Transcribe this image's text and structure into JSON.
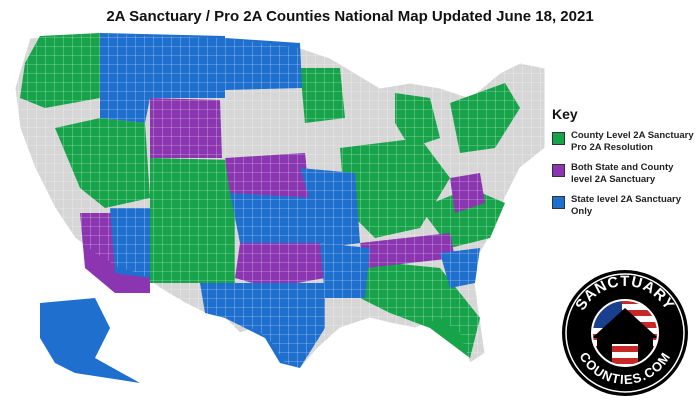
{
  "title": "2A Sanctuary / Pro 2A Counties National Map Updated June 18, 2021",
  "colors": {
    "county": "#16a34a",
    "both": "#8b35b0",
    "state": "#1f6fcf",
    "none": "#d6d6d6",
    "border": "#ffffff"
  },
  "key": {
    "title": "Key",
    "items": [
      {
        "label_1": "County Level 2A Sanctuary",
        "label_2": "Pro 2A Resolution",
        "color": "#16a34a"
      },
      {
        "label_1": "Both State and County",
        "label_2": "level 2A Sanctuary",
        "color": "#8b35b0"
      },
      {
        "label_1": "State level 2A Sanctuary",
        "label_2": "Only",
        "color": "#1f6fcf"
      }
    ]
  },
  "logo": {
    "text_top": "SANCTUARY",
    "text_bottom": "COUNTIES.COM"
  }
}
